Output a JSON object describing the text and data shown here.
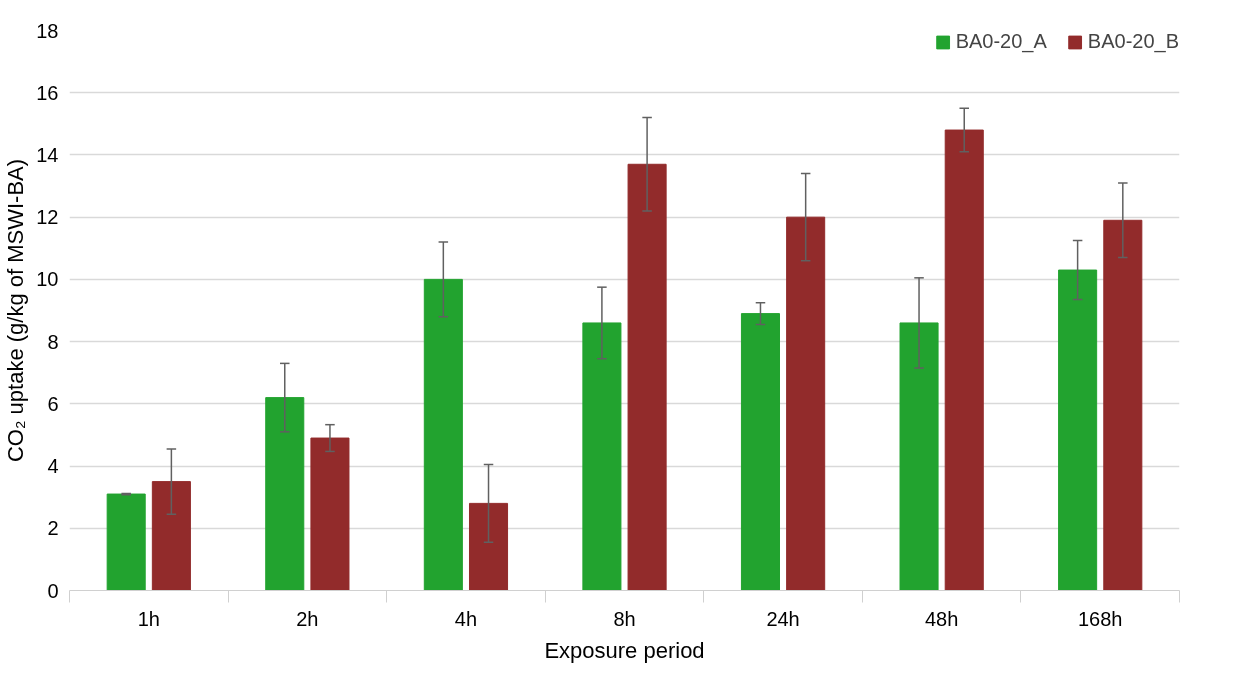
{
  "chart_data": {
    "type": "bar",
    "xlabel": "Exposure period",
    "ylabel": "CO₂ uptake (g/kg of MSWI-BA)",
    "categories": [
      "1h",
      "2h",
      "4h",
      "8h",
      "24h",
      "48h",
      "168h"
    ],
    "series": [
      {
        "name": "BA0-20_A",
        "color": "#22a32f",
        "values": [
          3.1,
          6.2,
          10.0,
          8.6,
          8.9,
          8.6,
          10.3
        ],
        "errors": [
          0.02,
          1.1,
          1.2,
          1.15,
          0.35,
          1.45,
          0.95
        ]
      },
      {
        "name": "BA0-20_B",
        "color": "#922b2b",
        "values": [
          3.5,
          4.9,
          2.8,
          13.7,
          12.0,
          14.8,
          11.9
        ],
        "errors": [
          1.05,
          0.43,
          1.25,
          1.5,
          1.4,
          0.7,
          1.2
        ]
      }
    ],
    "ylim": [
      0,
      18
    ],
    "yticks": [
      0,
      2,
      4,
      6,
      8,
      10,
      12,
      14,
      16,
      18
    ],
    "grid": "y",
    "legend": "top right"
  }
}
